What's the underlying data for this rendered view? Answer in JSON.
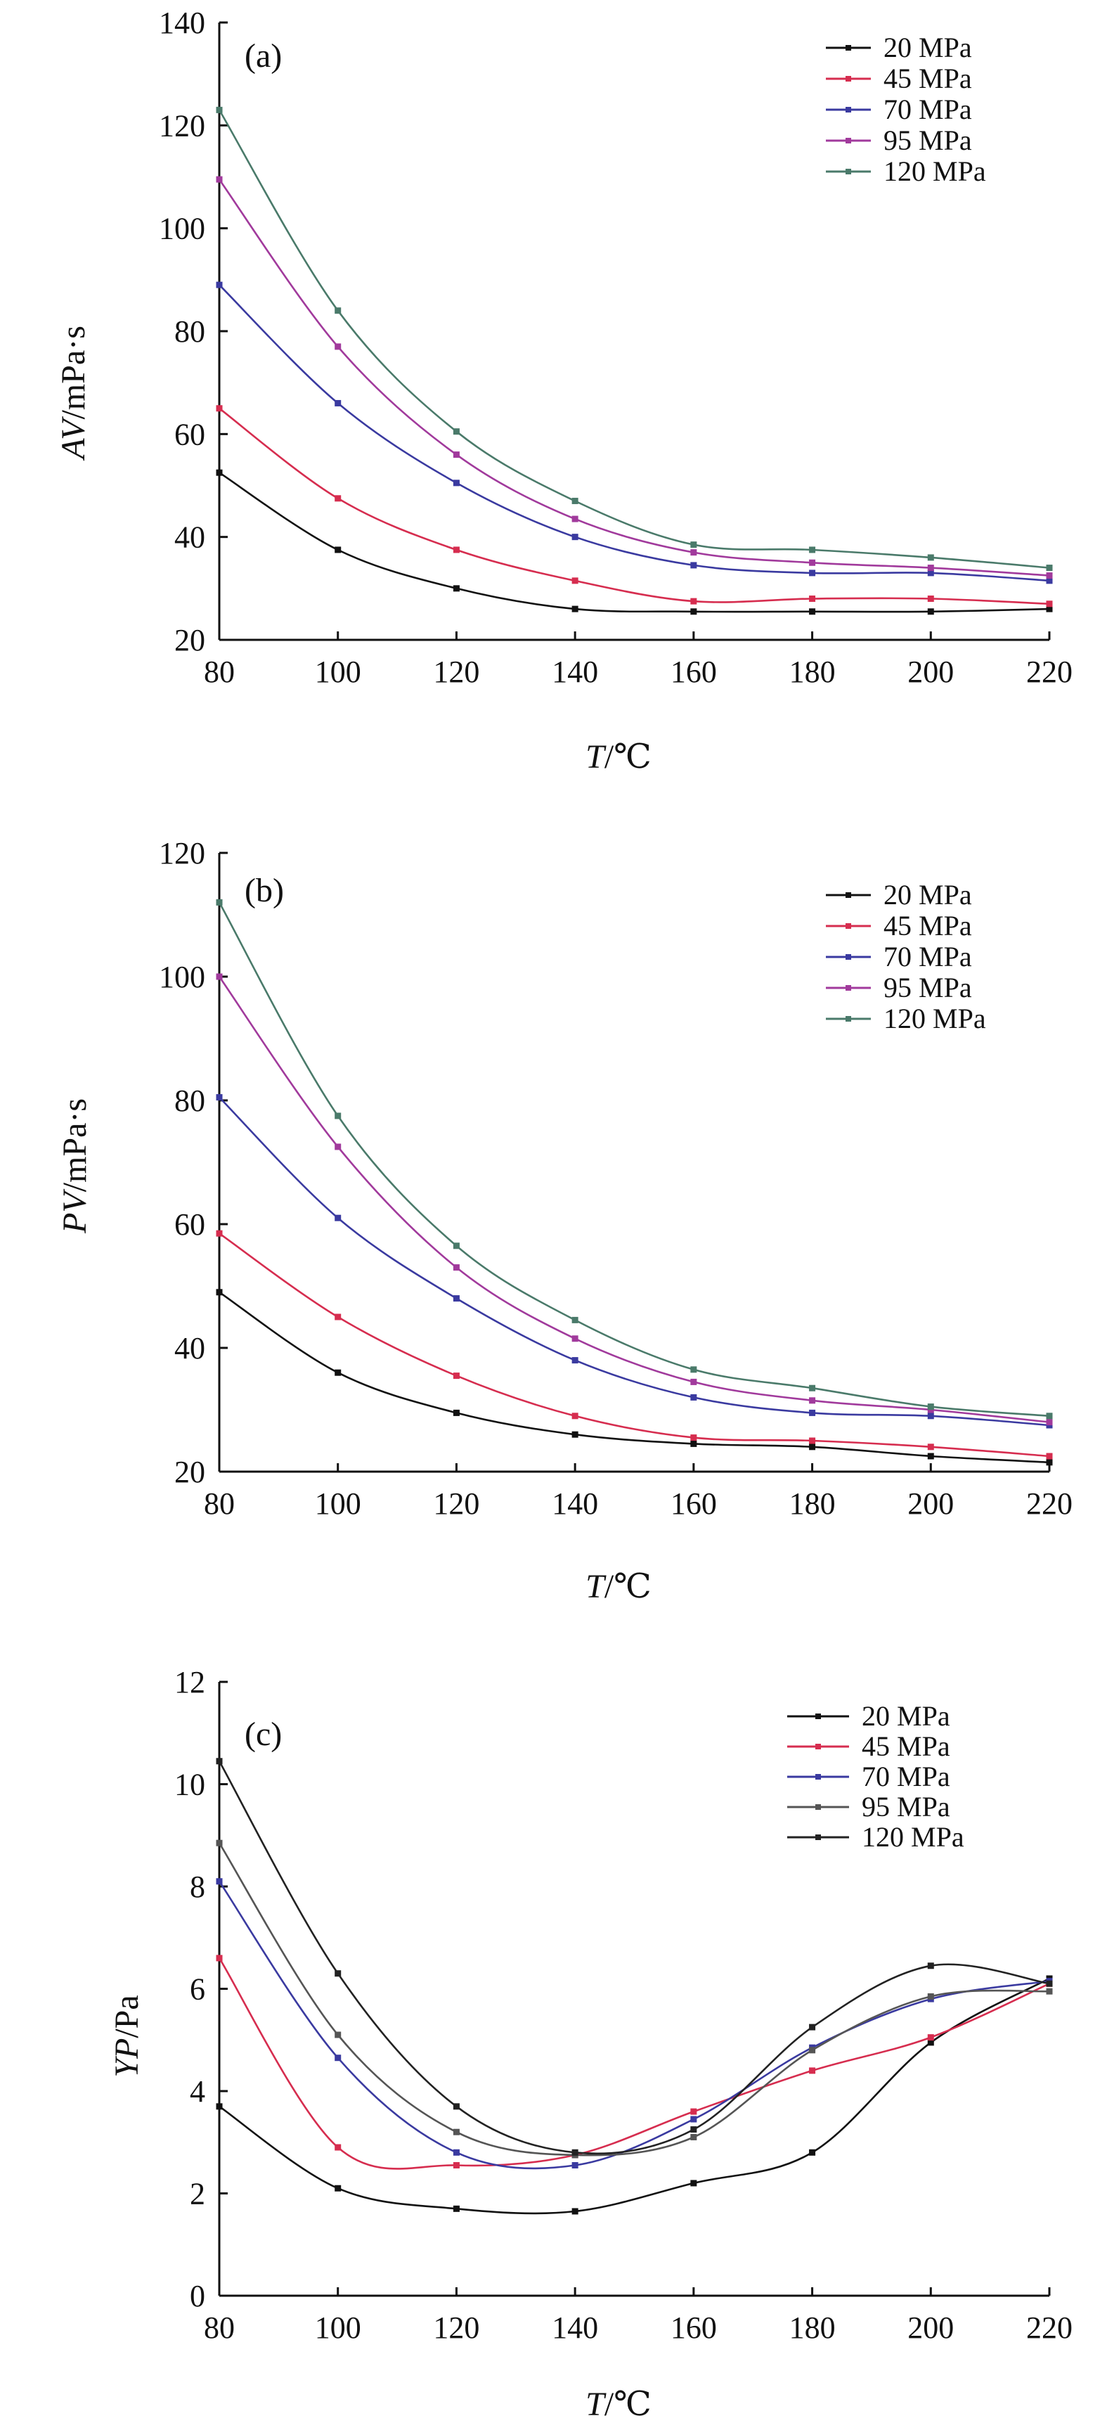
{
  "figure": {
    "panels": [
      {
        "tag": "(a)",
        "ylabel_main": "AV",
        "ylabel_unit": "/mPa·s",
        "xlabel_main": "T",
        "xlabel_unit": "/℃"
      },
      {
        "tag": "(b)",
        "ylabel_main": "PV",
        "ylabel_unit": "/mPa·s",
        "xlabel_main": "T",
        "xlabel_unit": "/℃"
      },
      {
        "tag": "(c)",
        "ylabel_main": "YP",
        "ylabel_unit": "/Pa",
        "xlabel_main": "T",
        "xlabel_unit": "/℃"
      }
    ]
  },
  "chart_data": [
    {
      "type": "line",
      "title": "",
      "panel_label": "(a)",
      "xlabel": "T/℃",
      "ylabel": "AV/mPa·s",
      "xlim": [
        80,
        220
      ],
      "ylim": [
        20,
        140
      ],
      "xticks": [
        80,
        100,
        120,
        140,
        160,
        180,
        200,
        220
      ],
      "yticks": [
        20,
        40,
        60,
        80,
        100,
        120,
        140
      ],
      "grid": false,
      "legend_position": "top-right",
      "x": [
        80,
        100,
        120,
        140,
        160,
        180,
        200,
        220
      ],
      "series": [
        {
          "name": "20 MPa",
          "color": "#111111",
          "values": [
            52.5,
            37.5,
            30,
            26,
            25.5,
            25.5,
            25.5,
            26
          ]
        },
        {
          "name": "45 MPa",
          "color": "#d62d4f",
          "values": [
            65,
            47.5,
            37.5,
            31.5,
            27.5,
            28,
            28,
            27
          ]
        },
        {
          "name": "70 MPa",
          "color": "#3a3aa0",
          "values": [
            89,
            66,
            50.5,
            40,
            34.5,
            33,
            33,
            31.5
          ]
        },
        {
          "name": "95 MPa",
          "color": "#a13a9c",
          "values": [
            109.5,
            77,
            56,
            43.5,
            37,
            35,
            34,
            32.5
          ]
        },
        {
          "name": "120 MPa",
          "color": "#4a7a6a",
          "values": [
            123,
            84,
            60.5,
            47,
            38.5,
            37.5,
            36,
            34
          ]
        }
      ]
    },
    {
      "type": "line",
      "title": "",
      "panel_label": "(b)",
      "xlabel": "T/℃",
      "ylabel": "PV/mPa·s",
      "xlim": [
        80,
        220
      ],
      "ylim": [
        20,
        120
      ],
      "xticks": [
        80,
        100,
        120,
        140,
        160,
        180,
        200,
        220
      ],
      "yticks": [
        20,
        40,
        60,
        80,
        100,
        120
      ],
      "grid": false,
      "legend_position": "top-right",
      "x": [
        80,
        100,
        120,
        140,
        160,
        180,
        200,
        220
      ],
      "series": [
        {
          "name": "20 MPa",
          "color": "#111111",
          "values": [
            49,
            36,
            29.5,
            26,
            24.5,
            24,
            22.5,
            21.5
          ]
        },
        {
          "name": "45 MPa",
          "color": "#d62d4f",
          "values": [
            58.5,
            45,
            35.5,
            29,
            25.5,
            25,
            24,
            22.5
          ]
        },
        {
          "name": "70 MPa",
          "color": "#3a3aa0",
          "values": [
            80.5,
            61,
            48,
            38,
            32,
            29.5,
            29,
            27.5
          ]
        },
        {
          "name": "95 MPa",
          "color": "#a13a9c",
          "values": [
            100,
            72.5,
            53,
            41.5,
            34.5,
            31.5,
            30,
            28
          ]
        },
        {
          "name": "120 MPa",
          "color": "#4a7a6a",
          "values": [
            112,
            77.5,
            56.5,
            44.5,
            36.5,
            33.5,
            30.5,
            29
          ]
        }
      ]
    },
    {
      "type": "line",
      "title": "",
      "panel_label": "(c)",
      "xlabel": "T/℃",
      "ylabel": "YP/Pa",
      "xlim": [
        80,
        220
      ],
      "ylim": [
        0,
        12
      ],
      "xticks": [
        80,
        100,
        120,
        140,
        160,
        180,
        200,
        220
      ],
      "yticks": [
        0,
        2,
        4,
        6,
        8,
        10,
        12
      ],
      "grid": false,
      "legend_position": "top-right",
      "x": [
        80,
        100,
        120,
        140,
        160,
        180,
        200,
        220
      ],
      "series": [
        {
          "name": "20 MPa",
          "color": "#111111",
          "values": [
            3.7,
            2.1,
            1.7,
            1.65,
            2.2,
            2.8,
            4.95,
            6.2
          ]
        },
        {
          "name": "45 MPa",
          "color": "#d62d4f",
          "values": [
            6.6,
            2.9,
            2.55,
            2.75,
            3.6,
            4.4,
            5.05,
            6.1
          ]
        },
        {
          "name": "70 MPa",
          "color": "#3a3aa0",
          "values": [
            8.1,
            4.65,
            2.8,
            2.55,
            3.45,
            4.85,
            5.8,
            6.15
          ]
        },
        {
          "name": "95 MPa",
          "color": "#555555",
          "values": [
            8.85,
            5.1,
            3.2,
            2.75,
            3.1,
            4.8,
            5.85,
            5.95
          ]
        },
        {
          "name": "120 MPa",
          "color": "#222222",
          "values": [
            10.45,
            6.3,
            3.7,
            2.8,
            3.25,
            5.25,
            6.45,
            6.1
          ]
        }
      ]
    }
  ]
}
